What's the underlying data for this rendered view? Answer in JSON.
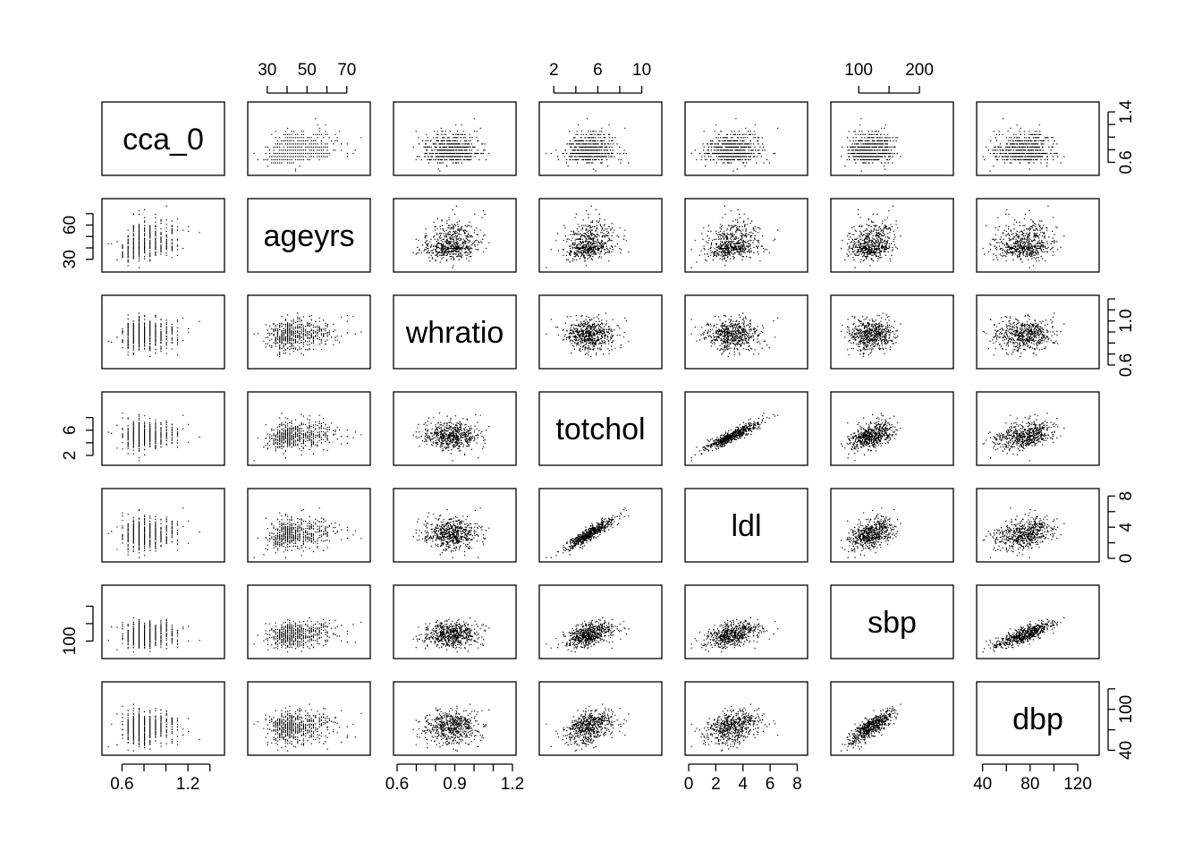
{
  "chart_data": {
    "type": "scatter",
    "title": "",
    "matrix_type": "pairs",
    "n_points_per_panel": 600,
    "variables": [
      {
        "name": "cca_0",
        "label": "cca_0",
        "range": [
          0.45,
          1.5
        ],
        "ticks": [
          0.6,
          0.8,
          1.0,
          1.2,
          1.4
        ],
        "tick_labels": [
          "0.6",
          "1.2"
        ],
        "right_tick_labels": [
          "0.6",
          "1.4"
        ],
        "axis_side": "bottom",
        "right_ticks": [
          0.6,
          0.8,
          1.0,
          1.2,
          1.4
        ],
        "right_labels_at": [
          0.6,
          1.4
        ],
        "distribution": {
          "mean": 0.78,
          "sd": 0.14,
          "discrete_step": 0.05
        }
      },
      {
        "name": "ageyrs",
        "label": "ageyrs",
        "range": [
          22,
          80
        ],
        "ticks": [
          30,
          40,
          50,
          60,
          70
        ],
        "tick_labels": [
          "30",
          "50",
          "70"
        ],
        "left_tick_labels": [
          "30",
          "60"
        ],
        "left_ticks": [
          30,
          40,
          50,
          60,
          70
        ],
        "left_labels_at": [
          30,
          60
        ],
        "axis_side": "top",
        "distribution": {
          "mean": 42,
          "sd": 10,
          "discrete_step": 1
        }
      },
      {
        "name": "whratio",
        "label": "whratio",
        "range": [
          0.6,
          1.2
        ],
        "ticks": [
          0.6,
          0.7,
          0.8,
          0.9,
          1.0,
          1.1,
          1.2
        ],
        "tick_labels": [
          "0.6",
          "0.9",
          "1.2"
        ],
        "right_tick_labels": [
          "0.6",
          "1.0"
        ],
        "right_ticks": [
          0.6,
          0.7,
          0.8,
          0.9,
          1.0,
          1.1,
          1.2
        ],
        "right_labels_at": [
          0.6,
          1.0
        ],
        "axis_side": "bottom",
        "distribution": {
          "mean": 0.88,
          "sd": 0.07,
          "discrete_step": 0
        }
      },
      {
        "name": "totchol",
        "label": "totchol",
        "range": [
          1.0,
          11.5
        ],
        "ticks": [
          2,
          4,
          6,
          8,
          10
        ],
        "tick_labels": [
          "2",
          "6",
          "10"
        ],
        "left_tick_labels": [
          "2",
          "6"
        ],
        "left_ticks": [
          2,
          4,
          6,
          8
        ],
        "left_labels_at": [
          2,
          6
        ],
        "axis_side": "top",
        "distribution": {
          "mean": 5.2,
          "sd": 1.1,
          "discrete_step": 0
        }
      },
      {
        "name": "ldl",
        "label": "ldl",
        "range": [
          0,
          8.5
        ],
        "ticks": [
          0,
          2,
          4,
          6,
          8
        ],
        "tick_labels": [
          "0",
          "2",
          "4",
          "6",
          "8"
        ],
        "right_tick_labels": [
          "0",
          "4",
          "8"
        ],
        "right_ticks": [
          0,
          2,
          4,
          6,
          8
        ],
        "right_labels_at": [
          0,
          4,
          8
        ],
        "axis_side": "bottom",
        "distribution": {
          "mean": 3.2,
          "sd": 1.0,
          "discrete_step": 0
        }
      },
      {
        "name": "sbp",
        "label": "sbp",
        "range": [
          60,
          250
        ],
        "ticks": [
          100,
          150,
          200
        ],
        "tick_labels": [
          "100",
          "200"
        ],
        "left_tick_labels": [
          "100"
        ],
        "left_ticks": [
          100,
          150,
          200
        ],
        "left_labels_at": [
          100
        ],
        "axis_side": "top",
        "distribution": {
          "mean": 120,
          "sd": 18,
          "discrete_step": 0
        }
      },
      {
        "name": "dbp",
        "label": "dbp",
        "range": [
          38,
          135
        ],
        "ticks": [
          40,
          60,
          80,
          100,
          120
        ],
        "tick_labels": [
          "40",
          "80",
          "120"
        ],
        "right_tick_labels": [
          "40",
          "100"
        ],
        "right_ticks": [
          40,
          70,
          100,
          130
        ],
        "right_labels_at": [
          40,
          100
        ],
        "axis_side": "bottom",
        "distribution": {
          "mean": 75,
          "sd": 12,
          "discrete_step": 0
        }
      }
    ],
    "correlations": {
      "totchol-ldl": 0.96,
      "sbp-dbp": 0.82,
      "totchol-sbp": 0.25,
      "totchol-dbp": 0.2,
      "ldl-sbp": 0.15,
      "ldl-dbp": 0.15,
      "cca_0-ageyrs": 0.3,
      "ageyrs-sbp": 0.2
    },
    "xlabel": "",
    "ylabel": ""
  }
}
